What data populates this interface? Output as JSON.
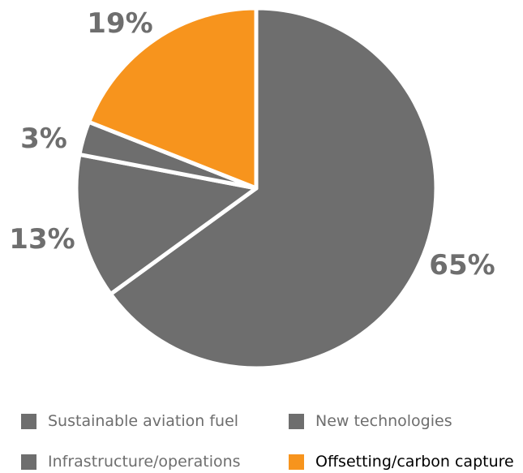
{
  "chart_data": {
    "type": "pie",
    "slices": [
      {
        "label": "Sustainable aviation fuel",
        "value": 65,
        "display": "65%",
        "color": "#6e6e6e"
      },
      {
        "label": "Infrastructure/operations",
        "value": 13,
        "display": "13%",
        "color": "#6e6e6e"
      },
      {
        "label": "New technologies",
        "value": 3,
        "display": "3%",
        "color": "#6e6e6e"
      },
      {
        "label": "Offsetting/carbon capture",
        "value": 19,
        "display": "19%",
        "color": "#f7941d"
      }
    ],
    "start_angle_deg": 0,
    "direction": "clockwise",
    "legend_placement": "bottom"
  },
  "legend": {
    "items": [
      {
        "label": "Sustainable aviation fuel",
        "color": "#6e6e6e"
      },
      {
        "label": "New technologies",
        "color": "#6e6e6e"
      },
      {
        "label": "Infrastructure/operations",
        "color": "#6e6e6e"
      },
      {
        "label": "Offsetting/carbon capture",
        "color": "#f7941d"
      }
    ]
  }
}
